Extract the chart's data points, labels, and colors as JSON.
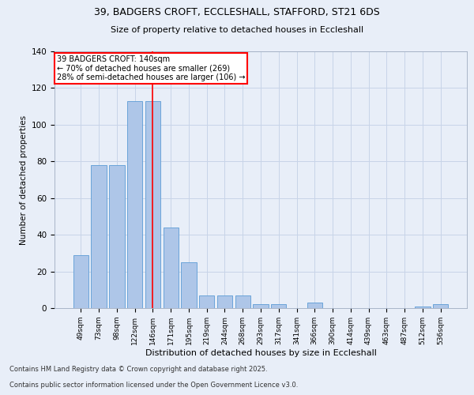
{
  "title_line1": "39, BADGERS CROFT, ECCLESHALL, STAFFORD, ST21 6DS",
  "title_line2": "Size of property relative to detached houses in Eccleshall",
  "xlabel": "Distribution of detached houses by size in Eccleshall",
  "ylabel": "Number of detached properties",
  "footer_line1": "Contains HM Land Registry data © Crown copyright and database right 2025.",
  "footer_line2": "Contains public sector information licensed under the Open Government Licence v3.0.",
  "categories": [
    "49sqm",
    "73sqm",
    "98sqm",
    "122sqm",
    "146sqm",
    "171sqm",
    "195sqm",
    "219sqm",
    "244sqm",
    "268sqm",
    "293sqm",
    "317sqm",
    "341sqm",
    "366sqm",
    "390sqm",
    "414sqm",
    "439sqm",
    "463sqm",
    "487sqm",
    "512sqm",
    "536sqm"
  ],
  "values": [
    29,
    78,
    78,
    113,
    113,
    44,
    25,
    7,
    7,
    7,
    2,
    2,
    0,
    3,
    0,
    0,
    0,
    0,
    0,
    1,
    2
  ],
  "bar_color": "#aec6e8",
  "bar_edge_color": "#5b9bd5",
  "grid_color": "#c8d4e8",
  "background_color": "#e8eef8",
  "fig_background_color": "#e8eef8",
  "annotation_box_text": "39 BADGERS CROFT: 140sqm\n← 70% of detached houses are smaller (269)\n28% of semi-detached houses are larger (106) →",
  "redline_x": 4,
  "ylim": [
    0,
    140
  ],
  "yticks": [
    0,
    20,
    40,
    60,
    80,
    100,
    120,
    140
  ]
}
